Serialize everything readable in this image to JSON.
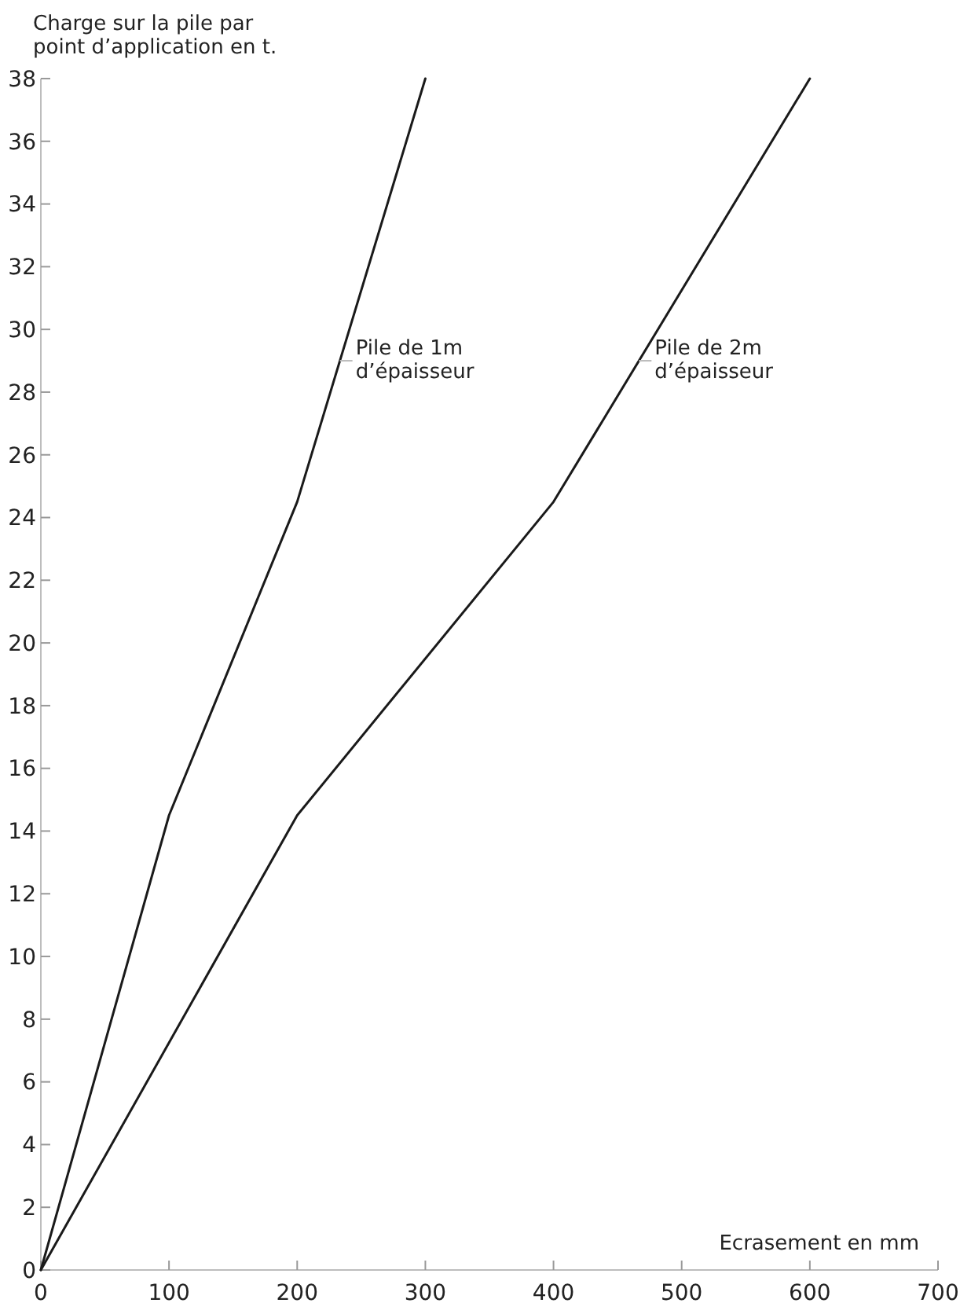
{
  "chart_data": {
    "type": "line",
    "xlabel": "Ecrasement en mm",
    "ylabel": "Charge sur la pile par point d’application en t.",
    "series": [
      {
        "name": "Pile de 1m d’épaisseur",
        "color": "#1a1a1a",
        "x": [
          0,
          100,
          200,
          300
        ],
        "values": [
          0,
          14.5,
          24.5,
          38
        ]
      },
      {
        "name": "Pile de 2m d’épaisseur",
        "color": "#1a1a1a",
        "x": [
          0,
          200,
          400,
          600
        ],
        "values": [
          0,
          14.5,
          24.5,
          38
        ]
      }
    ],
    "xlim": [
      0,
      700
    ],
    "xticks": [
      0,
      100,
      200,
      300,
      400,
      500,
      600,
      700
    ],
    "ylim": [
      0,
      38
    ],
    "yticks": [
      0,
      2,
      4,
      6,
      8,
      10,
      12,
      14,
      16,
      18,
      20,
      22,
      24,
      26,
      28,
      30,
      32,
      34,
      36,
      38
    ],
    "grid": false,
    "marker": "none",
    "line_style": "solid"
  }
}
